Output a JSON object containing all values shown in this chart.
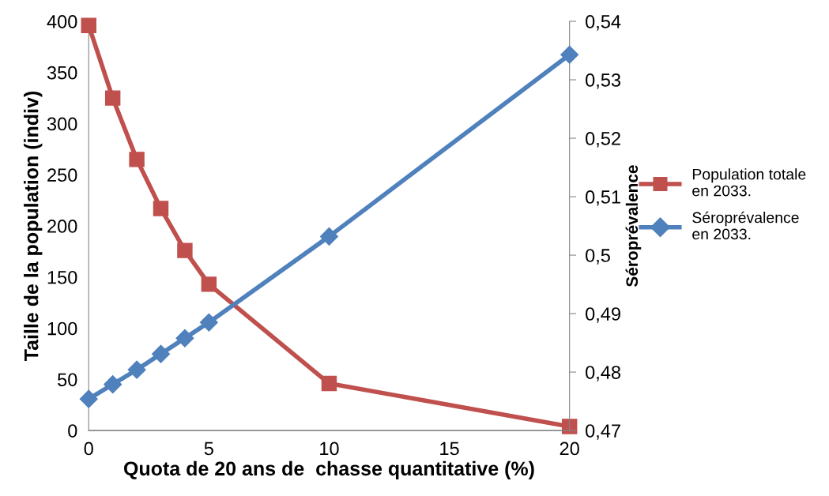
{
  "chart_data": {
    "type": "line",
    "xlabel": "Quota de 20 ans de  chasse quantitative (%)",
    "ylabel": "Taille de la population (indiv)",
    "y2label": "Séroprévalence",
    "x": [
      0,
      1,
      2,
      3,
      4,
      5,
      10,
      20
    ],
    "xlim": [
      0,
      20
    ],
    "xticks": [
      0,
      5,
      10,
      15,
      20
    ],
    "ylim": [
      0,
      400
    ],
    "yticks": [
      0,
      50,
      100,
      150,
      200,
      250,
      300,
      350,
      400
    ],
    "y2lim": [
      0.47,
      0.54
    ],
    "y2ticks": [
      {
        "value": 0.47,
        "label": "0,47"
      },
      {
        "value": 0.48,
        "label": "0,48"
      },
      {
        "value": 0.49,
        "label": "0,49"
      },
      {
        "value": 0.5,
        "label": "0,5"
      },
      {
        "value": 0.51,
        "label": "0,51"
      },
      {
        "value": 0.52,
        "label": "0,52"
      },
      {
        "value": 0.53,
        "label": "0,53"
      },
      {
        "value": 0.54,
        "label": "0,54"
      }
    ],
    "series": [
      {
        "name": "Population totale\nen 2033.",
        "color": "#c0504d",
        "marker": "square",
        "values": [
          396,
          325,
          265,
          217,
          176,
          143,
          46,
          4
        ]
      },
      {
        "name": "Séroprévalence\nen 2033.",
        "color": "#4f81bd",
        "marker": "diamond",
        "axis": "y2",
        "values": [
          0.4754,
          0.4779,
          0.4804,
          0.4831,
          0.4858,
          0.4885,
          0.5032,
          0.5343
        ]
      }
    ],
    "legend": "right",
    "grid": false
  }
}
